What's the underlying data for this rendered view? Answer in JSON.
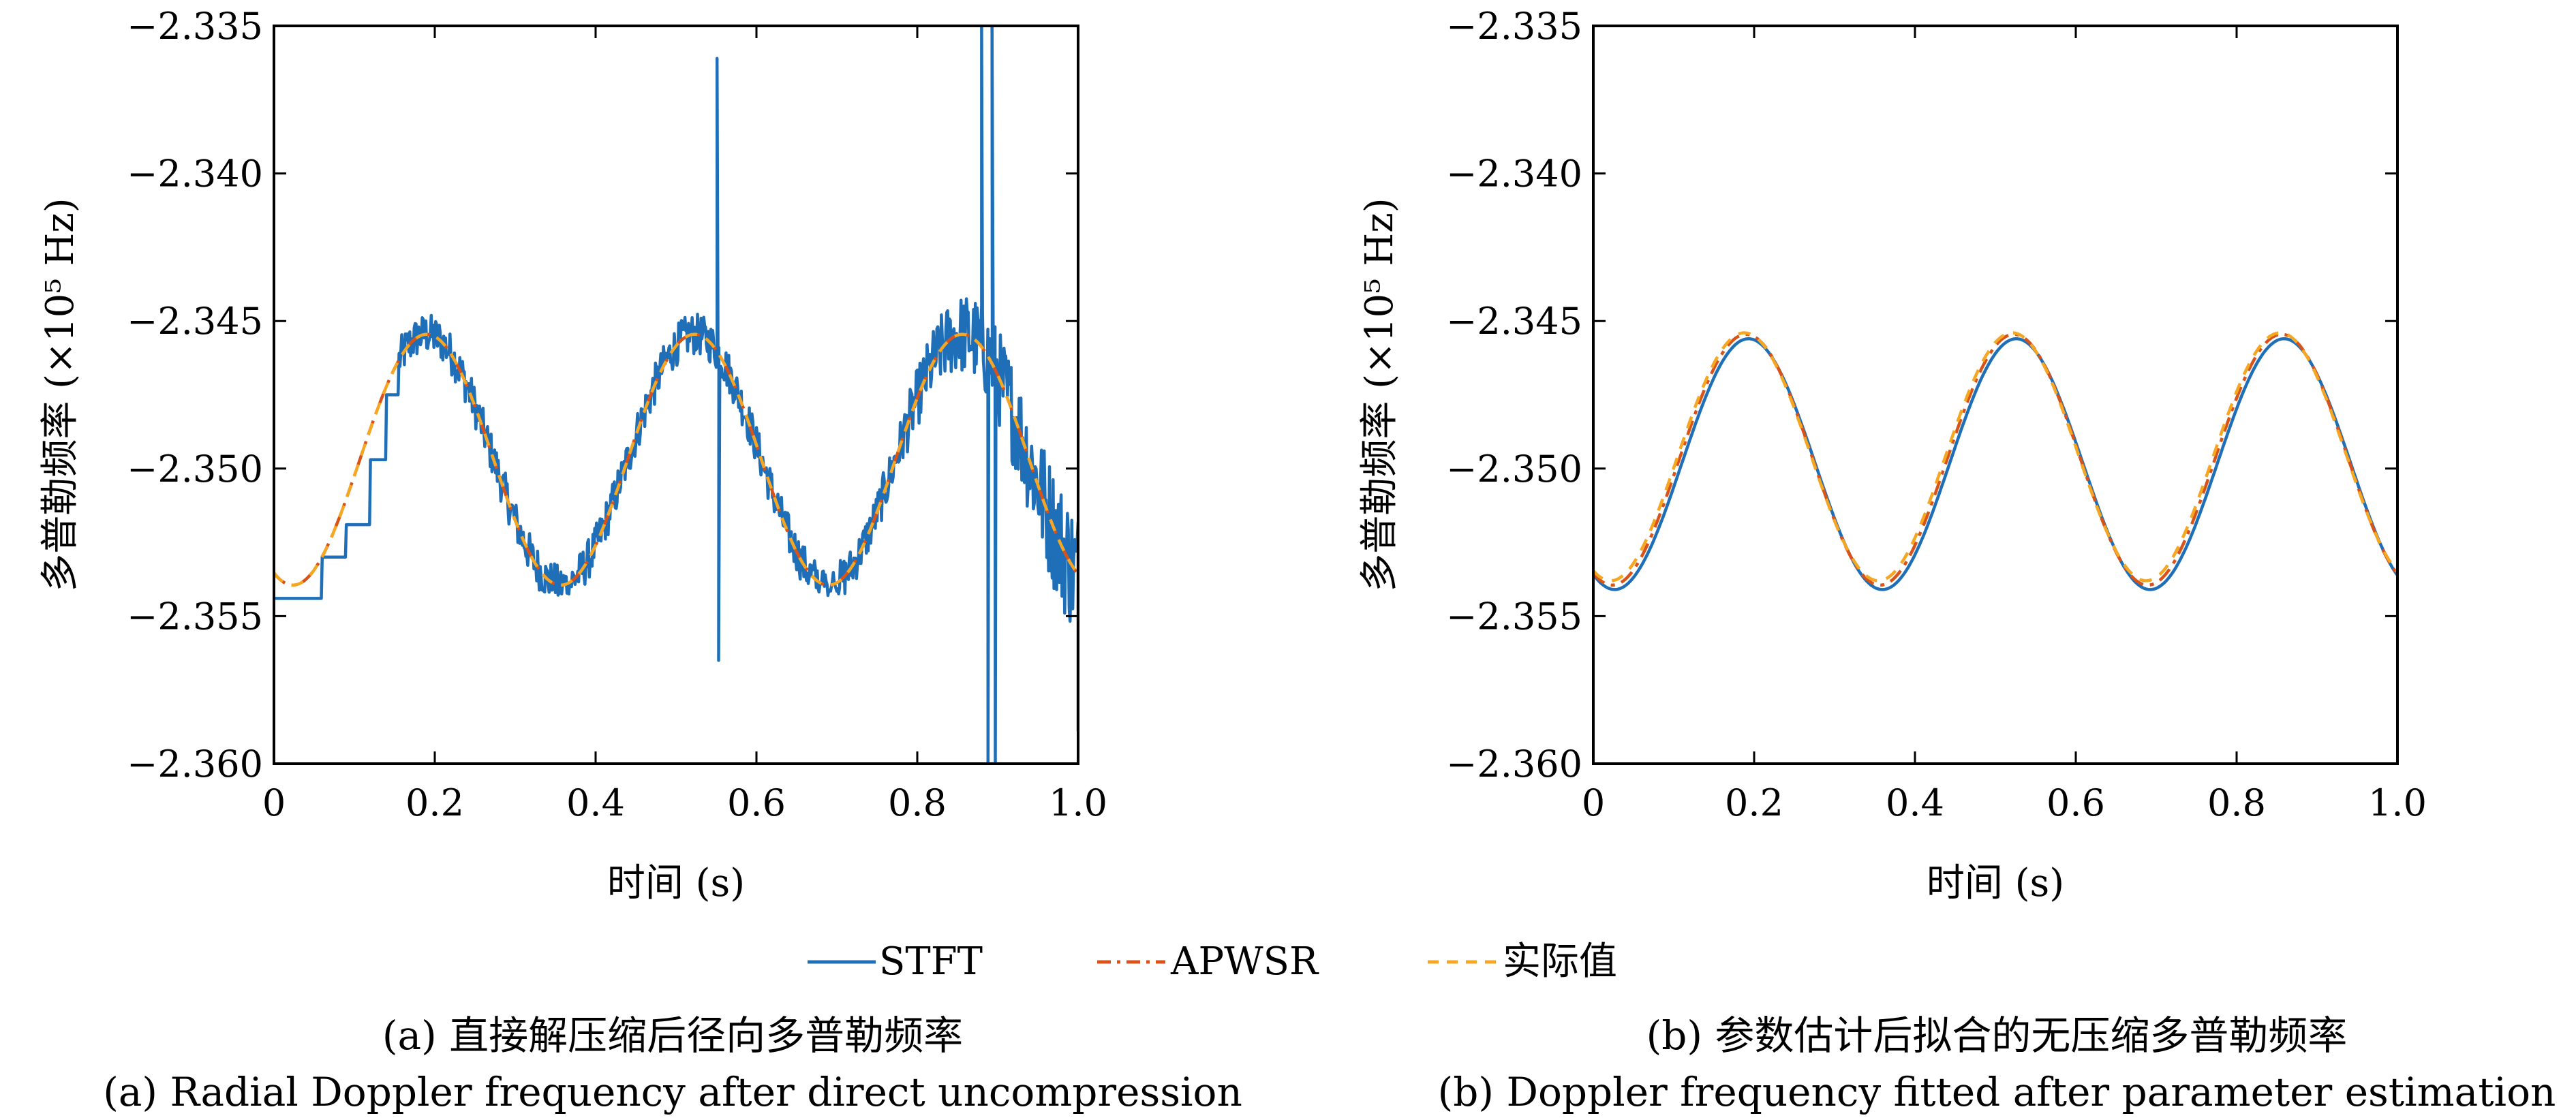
{
  "colors": {
    "stft": "#1f6fb8",
    "apwsr": "#d95319",
    "actual": "#f5a623"
  },
  "legend": [
    {
      "label": "STFT",
      "style": "solid",
      "color": "#1f6fb8"
    },
    {
      "label": "APWSR",
      "style": "dash-dot",
      "color": "#d95319"
    },
    {
      "label": "实际值",
      "style": "dashed",
      "color": "#f5a623"
    }
  ],
  "chart_data": [
    {
      "type": "line",
      "xlabel": "时间 (s)",
      "ylabel": "多普勒频率 (×10⁵ Hz)",
      "xlim": [
        0,
        1.0
      ],
      "ylim": [
        -2.36,
        -2.335
      ],
      "xticks": [
        "0",
        "0.2",
        "0.4",
        "0.6",
        "0.8",
        "1.0"
      ],
      "yticks": [
        "−2.335",
        "−2.340",
        "−2.345",
        "−2.350",
        "−2.355",
        "−2.360"
      ],
      "caption_cn": "(a) 直接解压缩后径向多普勒频率",
      "caption_en": "(a) Radial Doppler frequency after direct uncompression",
      "series": [
        {
          "name": "STFT",
          "kind": "noisy-staircase",
          "baseline_mean": -2.3497,
          "amplitude": 0.00425,
          "period": 0.333,
          "phase_peak": 0.19,
          "noise": 0.0007,
          "spikes": [
            [
              0.551,
              -2.3361
            ],
            [
              0.553,
              -2.3565
            ],
            [
              0.88,
              -2.335
            ],
            [
              0.888,
              -2.36
            ],
            [
              0.893,
              -2.335
            ],
            [
              0.897,
              -2.36
            ]
          ]
        },
        {
          "name": "APWSR",
          "kind": "sine",
          "mean": -2.3497,
          "amplitude": 0.00425,
          "period": 0.333,
          "phase_peak": 0.19
        },
        {
          "name": "实际值",
          "kind": "sine",
          "mean": -2.3497,
          "amplitude": 0.00425,
          "period": 0.333,
          "phase_peak": 0.19
        }
      ]
    },
    {
      "type": "line",
      "xlabel": "时间 (s)",
      "ylabel": "多普勒频率 (×10⁵ Hz)",
      "xlim": [
        0,
        1.0
      ],
      "ylim": [
        -2.36,
        -2.335
      ],
      "xticks": [
        "0",
        "0.2",
        "0.4",
        "0.6",
        "0.8",
        "1.0"
      ],
      "yticks": [
        "−2.335",
        "−2.340",
        "−2.345",
        "−2.350",
        "−2.355",
        "−2.360"
      ],
      "caption_cn": "(b) 参数估计后拟合的无压缩多普勒频率",
      "caption_en": "(b) Doppler frequency fitted after parameter estimation",
      "series": [
        {
          "name": "STFT",
          "kind": "sine",
          "mean": -2.34985,
          "amplitude": 0.00425,
          "period": 0.333,
          "phase_peak": 0.193
        },
        {
          "name": "APWSR",
          "kind": "sine",
          "mean": -2.3497,
          "amplitude": 0.00425,
          "period": 0.333,
          "phase_peak": 0.19
        },
        {
          "name": "实际值",
          "kind": "sine",
          "mean": -2.3496,
          "amplitude": 0.0042,
          "period": 0.333,
          "phase_peak": 0.188
        }
      ]
    }
  ]
}
